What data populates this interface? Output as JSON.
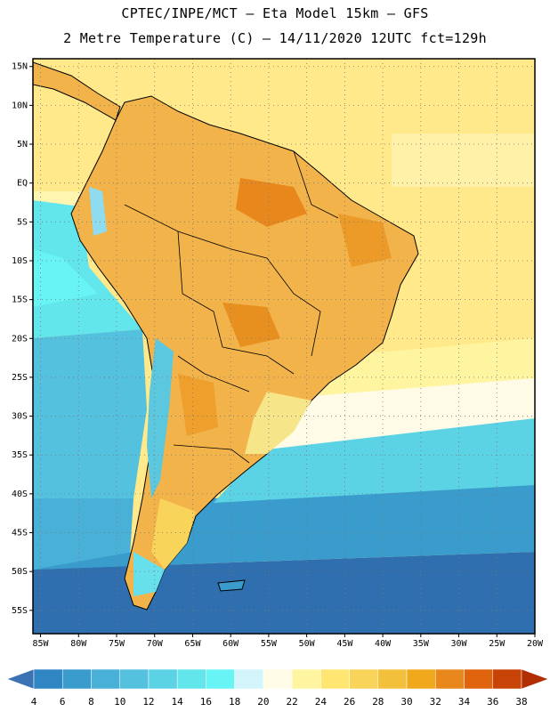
{
  "title": {
    "line1": "CPTEC/INPE/MCT –  Eta Model 15km – GFS",
    "line2": "2 Metre Temperature (C) – 14/11/2020 12UTC fct=129h"
  },
  "axes": {
    "lat_labels": [
      "15N",
      "10N",
      "5N",
      "EQ",
      "5S",
      "10S",
      "15S",
      "20S",
      "25S",
      "30S",
      "35S",
      "40S",
      "45S",
      "50S",
      "55S"
    ],
    "lat_values": [
      15,
      10,
      5,
      0,
      -5,
      -10,
      -15,
      -20,
      -25,
      -30,
      -35,
      -40,
      -45,
      -50,
      -55
    ],
    "lon_labels": [
      "85W",
      "80W",
      "75W",
      "70W",
      "65W",
      "60W",
      "55W",
      "50W",
      "45W",
      "40W",
      "35W",
      "30W",
      "25W",
      "20W"
    ],
    "lon_values": [
      -85,
      -80,
      -75,
      -70,
      -65,
      -60,
      -55,
      -50,
      -45,
      -40,
      -35,
      -30,
      -25,
      -20
    ],
    "lon_range": [
      -86,
      -20
    ],
    "lat_range": [
      -58,
      16
    ]
  },
  "colorbar": {
    "labels": [
      "4",
      "6",
      "8",
      "10",
      "12",
      "14",
      "16",
      "18",
      "20",
      "22",
      "24",
      "26",
      "28",
      "30",
      "32",
      "34",
      "36",
      "38"
    ],
    "colors": [
      "#3a72b4",
      "#2f86c2",
      "#3a9bcd",
      "#49b1d8",
      "#54c1de",
      "#5cd3e4",
      "#62e6ec",
      "#68f4f4",
      "#d2f4fa",
      "#fffbe6",
      "#fff5a0",
      "#ffe672",
      "#f9d45a",
      "#f2c03a",
      "#f0a81c",
      "#e8881c",
      "#e0640e",
      "#c84406",
      "#b02e02"
    ]
  }
}
